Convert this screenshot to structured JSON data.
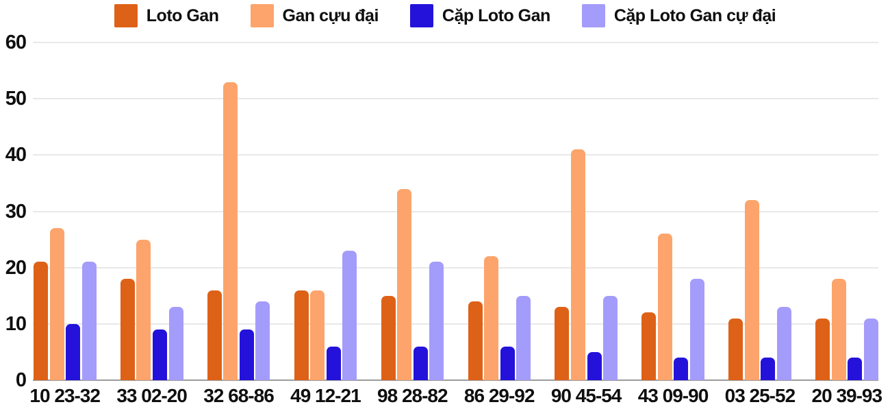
{
  "chart_data": {
    "type": "bar",
    "title": "",
    "xlabel": "",
    "ylabel": "",
    "categories": [
      "10 23-32",
      "33 02-20",
      "32 68-86",
      "49 12-21",
      "98 28-82",
      "86 29-92",
      "90 45-54",
      "43 09-90",
      "03 25-52",
      "20 39-93"
    ],
    "series": [
      {
        "name": "Loto Gan",
        "color": "#de6118",
        "values": [
          21,
          18,
          16,
          16,
          15,
          14,
          13,
          12,
          11,
          11
        ]
      },
      {
        "name": "Gan cựu đại",
        "color": "#fca46b",
        "values": [
          27,
          25,
          53,
          16,
          34,
          22,
          41,
          26,
          32,
          18
        ]
      },
      {
        "name": "Cặp Loto Gan",
        "color": "#2412db",
        "values": [
          10,
          9,
          9,
          6,
          6,
          6,
          5,
          4,
          4,
          4
        ]
      },
      {
        "name": "Cặp Loto Gan cự đại",
        "color": "#a49cfa",
        "values": [
          21,
          13,
          14,
          23,
          21,
          15,
          15,
          18,
          13,
          11
        ]
      }
    ],
    "ylim": [
      0,
      60
    ],
    "yticks": [
      0,
      10,
      20,
      30,
      40,
      50,
      60
    ],
    "grid": true,
    "legend_position": "top"
  },
  "colors": {
    "background": "#ffffff",
    "gridline": "#e8e8e8",
    "baseline": "#9c9c9c",
    "text": "#0f0f0f"
  }
}
